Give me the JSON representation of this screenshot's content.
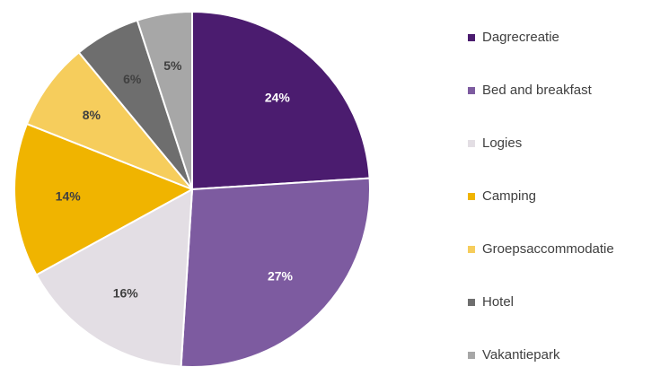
{
  "chart_data": {
    "type": "pie",
    "categories": [
      "Dagrecreatie",
      "Bed and breakfast",
      "Logies",
      "Camping",
      "Groepsaccommodatie",
      "Hotel",
      "Vakantiepark"
    ],
    "values": [
      24,
      27,
      16,
      14,
      8,
      6,
      5
    ],
    "value_labels": [
      "24%",
      "27%",
      "16%",
      "14%",
      "8%",
      "6%",
      "5%"
    ],
    "colors": [
      "#4b1c6f",
      "#7d5ba0",
      "#e3dee4",
      "#f0b400",
      "#f6cd5c",
      "#6e6e6e",
      "#a7a7a7"
    ],
    "legend": "right"
  }
}
